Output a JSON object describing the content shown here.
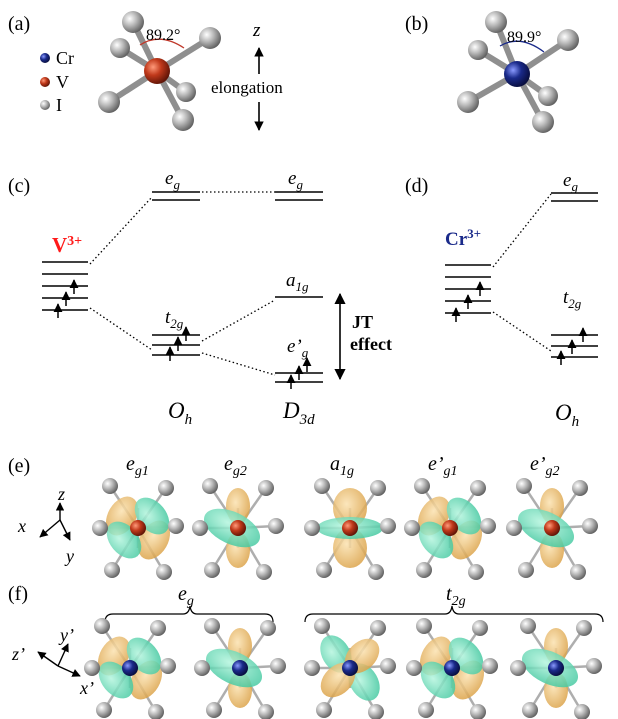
{
  "panels": {
    "a": "(a)",
    "b": "(b)",
    "c": "(c)",
    "d": "(d)",
    "e": "(e)",
    "f": "(f)"
  },
  "legend": [
    {
      "symbol": "Cr",
      "color": "#1a2a8a"
    },
    {
      "symbol": "V",
      "color": "#c0391b"
    },
    {
      "symbol": "I",
      "color": "#a8a8a8"
    }
  ],
  "structure_a": {
    "angle": "89.2°",
    "axis": "z",
    "distortion": "elongation",
    "center_color": "#c0391b"
  },
  "structure_b": {
    "angle": "89.9°",
    "center_color": "#1a2a8a"
  },
  "levels_c": {
    "ion": {
      "base": "V",
      "charge": "3+"
    },
    "ion_color": "#ff1a1a",
    "oh": {
      "eg": {
        "b": "e",
        "s": "g"
      },
      "t2g": {
        "b": "t",
        "s": "2g"
      }
    },
    "d3d": {
      "eg": {
        "b": "e",
        "s": "g"
      },
      "a1g": {
        "b": "a",
        "s": "1g"
      },
      "ep": {
        "b": "e’",
        "s": "g"
      }
    },
    "jt_line1": "JT",
    "jt_line2": "effect",
    "sym_oh": {
      "b": "O",
      "s": "h"
    },
    "sym_d3d": {
      "b": "D",
      "s": "3d"
    }
  },
  "levels_d": {
    "ion": {
      "base": "Cr",
      "charge": "3+"
    },
    "ion_color": "#1a2a8a",
    "eg": {
      "b": "e",
      "s": "g"
    },
    "t2g": {
      "b": "t",
      "s": "2g"
    },
    "sym_oh": {
      "b": "O",
      "s": "h"
    }
  },
  "orbitals_e": {
    "labels": [
      {
        "b": "e",
        "s": "g1"
      },
      {
        "b": "e",
        "s": "g2"
      },
      {
        "b": "a",
        "s": "1g"
      },
      {
        "b": "e’",
        "s": "g1"
      },
      {
        "b": "e’",
        "s": "g2"
      }
    ],
    "axes": {
      "x": "x",
      "y": "y",
      "z": "z"
    }
  },
  "orbitals_f": {
    "group1": {
      "b": "e",
      "s": "g"
    },
    "group2": {
      "b": "t",
      "s": "2g"
    },
    "axes": {
      "x": "x’",
      "y": "y’",
      "z": "z’"
    }
  },
  "colors": {
    "lobe_pos": "#e8b25a",
    "lobe_neg": "#5fd8b4",
    "ligand": "#b0b0b0"
  }
}
